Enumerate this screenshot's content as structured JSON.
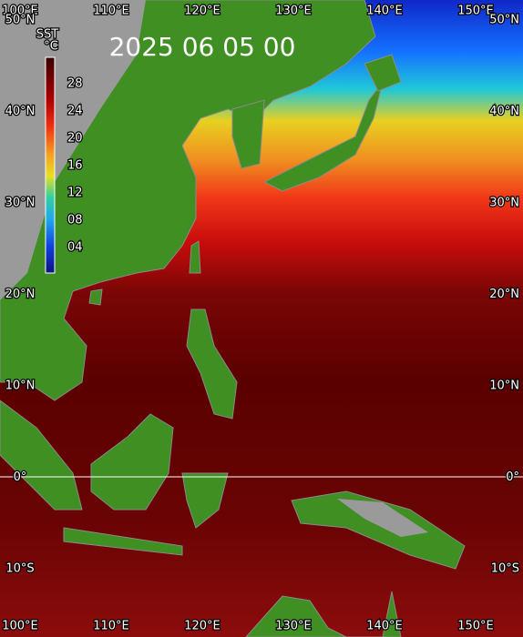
{
  "title": "2025 06 05 00",
  "colorbar": {
    "label": "SST",
    "unit": "°C",
    "ticks": [
      "28",
      "24",
      "20",
      "16",
      "12",
      "08",
      "04"
    ]
  },
  "lon_labels_top": [
    "100°E",
    "110°E",
    "120°E",
    "130°E",
    "140°E",
    "150°E"
  ],
  "lon_labels_bottom": [
    "100°E",
    "110°E",
    "120°E",
    "130°E",
    "140°E",
    "150°E"
  ],
  "lat_labels_left": [
    "50°N",
    "40°N",
    "30°N",
    "20°N",
    "10°N",
    "0°",
    "10°S"
  ],
  "lat_labels_right": [
    "50°N",
    "40°N",
    "30°N",
    "20°N",
    "10°N",
    "0°",
    "10°S"
  ]
}
